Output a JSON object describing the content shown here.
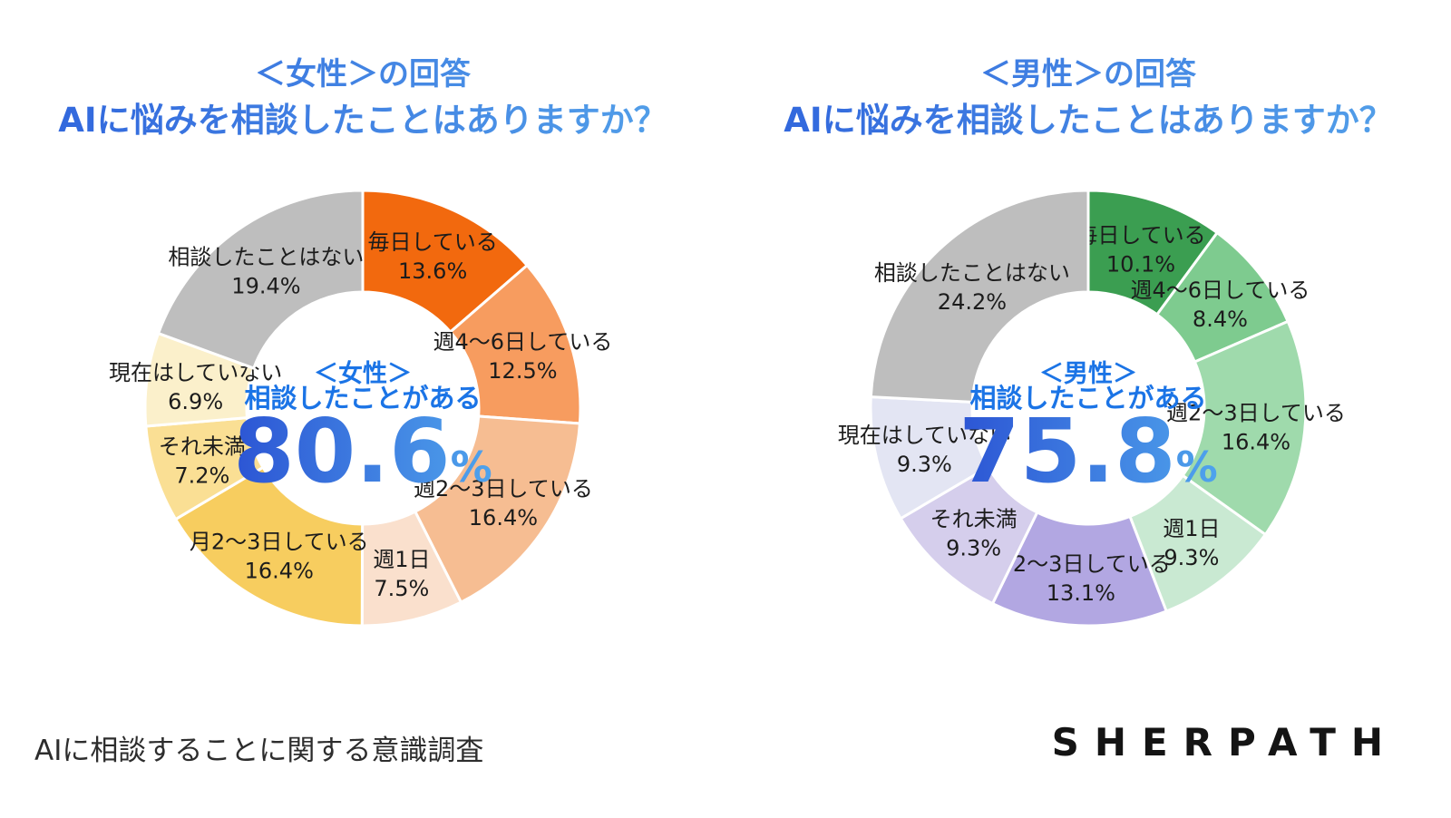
{
  "page": {
    "background": "#ffffff",
    "footer_note": "AIに相談することに関する意識調査",
    "brand": "SHERPATH",
    "accent": {
      "title_gradient": [
        "#2F63DC",
        "#55A4EA"
      ],
      "center_text_color": "#1B74E6",
      "number_gradient": [
        "#2C55D4",
        "#4FA3EC"
      ],
      "label_color": "#1C1C1C",
      "footer_text_color": "#2D2D2D",
      "brand_color": "#141414",
      "segment_divider": "#FFFFFF"
    }
  },
  "chart_data": [
    {
      "type": "pie",
      "variant": "donut",
      "title": "＜女性＞の回答",
      "subtitle": "AIに悩みを相談したことはありますか？",
      "center_label_line1": "＜女性＞",
      "center_label_line2": "相談したことがある",
      "center_value": "80.6",
      "center_unit": "%",
      "start_angle": "top",
      "direction": "clockwise",
      "legend": "none",
      "categories": [
        "毎日している",
        "週4〜6日している",
        "週2〜3日している",
        "週1日",
        "月2〜3日している",
        "それ未満",
        "現在はしていない",
        "相談したことはない"
      ],
      "values": [
        13.6,
        12.5,
        16.4,
        7.5,
        16.4,
        7.2,
        6.9,
        19.4
      ],
      "colors": [
        "#F2690E",
        "#F79C5F",
        "#F6BD92",
        "#FAE0CD",
        "#F7CD5F",
        "#FADF94",
        "#FBF0CB",
        "#BEBEBE"
      ]
    },
    {
      "type": "pie",
      "variant": "donut",
      "title": "＜男性＞の回答",
      "subtitle": "AIに悩みを相談したことはありますか？",
      "center_label_line1": "＜男性＞",
      "center_label_line2": "相談したことがある",
      "center_value": "75.8",
      "center_unit": "%",
      "start_angle": "top",
      "direction": "clockwise",
      "legend": "none",
      "categories": [
        "毎日している",
        "週4〜6日している",
        "週2〜3日している",
        "週1日",
        "月2〜3日している",
        "それ未満",
        "現在はしていない",
        "相談したことはない"
      ],
      "values": [
        10.1,
        8.4,
        16.4,
        9.3,
        13.1,
        9.3,
        9.3,
        24.2
      ],
      "colors": [
        "#3B9E51",
        "#7ECB8F",
        "#9FDAAC",
        "#C9E9D2",
        "#B2A7E2",
        "#D5CEEC",
        "#E3E5F3",
        "#BEBEBE"
      ]
    }
  ]
}
